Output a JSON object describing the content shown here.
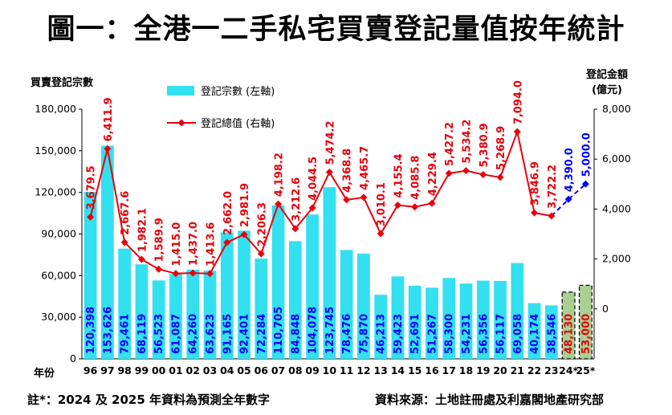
{
  "title": "圖一：全港一二手私宅買賣登記量值按年統計",
  "left_axis_title": "買賣登記宗數",
  "right_axis_title_line1": "登記金額",
  "right_axis_title_line2": "(億元)",
  "x_axis_title": "年份",
  "footnote": "註*：2024 及 2025 年資料為預測全年數字",
  "source": "資料來源：土地註冊處及利嘉閣地產研究部",
  "colors": {
    "bar": "#33e0f0",
    "bar_forecast": "#a9cf92",
    "line": "#e8000b",
    "line_forecast": "#0000ff",
    "bar_label": "#0000ff",
    "bar_label_forecast": "#e8000b"
  },
  "chart_data": {
    "type": "bar",
    "categories": [
      "96",
      "97",
      "98",
      "99",
      "00",
      "01",
      "02",
      "03",
      "04",
      "05",
      "06",
      "07",
      "08",
      "09",
      "10",
      "11",
      "12",
      "13",
      "14",
      "15",
      "16",
      "17",
      "18",
      "19",
      "20",
      "21",
      "22",
      "23",
      "24*",
      "25*"
    ],
    "forecast_from_index": 28,
    "left_axis": {
      "ylim": [
        0,
        180000
      ],
      "ticks": [
        "0",
        "30,000",
        "60,000",
        "90,000",
        "120,000",
        "150,000",
        "180,000"
      ]
    },
    "right_axis": {
      "ylim": [
        -2000,
        8000
      ],
      "ticks": [
        "0",
        "2,000",
        "4,000",
        "6,000",
        "8,000"
      ]
    },
    "series": [
      {
        "name": "登記宗數 (左軸)",
        "type": "bar",
        "values": [
          120398,
          153626,
          79461,
          68119,
          56523,
          61087,
          64260,
          63623,
          91165,
          92401,
          72284,
          110705,
          84848,
          104078,
          123745,
          78476,
          75870,
          46213,
          59423,
          52691,
          51267,
          58300,
          54231,
          56356,
          56117,
          69058,
          40174,
          38546,
          48130,
          53000
        ],
        "labels": [
          "120,398",
          "153,626",
          "79,461",
          "68,119",
          "56,523",
          "61,087",
          "64,260",
          "63,623",
          "91,165",
          "92,401",
          "72,284",
          "110,705",
          "84,848",
          "104,078",
          "123,745",
          "78,476",
          "75,870",
          "46,213",
          "59,423",
          "52,691",
          "51,267",
          "58,300",
          "54,231",
          "56,356",
          "56,117",
          "69,058",
          "40,174",
          "38,546",
          "48,130",
          "53,000"
        ]
      },
      {
        "name": "登記總值 (右軸)",
        "type": "line",
        "values": [
          3679.5,
          6411.9,
          2667.6,
          1982.1,
          1589.9,
          1415.0,
          1437.0,
          1413.6,
          2662.0,
          2981.9,
          2206.3,
          4198.2,
          3212.6,
          4044.5,
          5474.2,
          4368.8,
          4465.7,
          3010.1,
          4155.4,
          4085.8,
          4229.4,
          5427.2,
          5534.2,
          5380.9,
          5268.9,
          7094.0,
          3846.9,
          3722.2,
          4390.0,
          5000.0
        ],
        "labels": [
          "3,679.5",
          "6,411.9",
          "2,667.6",
          "1,982.1",
          "1,589.9",
          "1,415.0",
          "1,437.0",
          "1,413.6",
          "2,662.0",
          "2,981.9",
          "2,206.3",
          "4,198.2",
          "3,212.6",
          "4,044.5",
          "5,474.2",
          "4,368.8",
          "4,465.7",
          "3,010.1",
          "4,155.4",
          "4,085.8",
          "4,229.4",
          "5,427.2",
          "5,534.2",
          "5,380.9",
          "5,268.9",
          "7,094.0",
          "3,846.9",
          "3,722.2",
          "4,390.0",
          "5,000.0"
        ]
      }
    ],
    "legend_position": "top-left"
  }
}
